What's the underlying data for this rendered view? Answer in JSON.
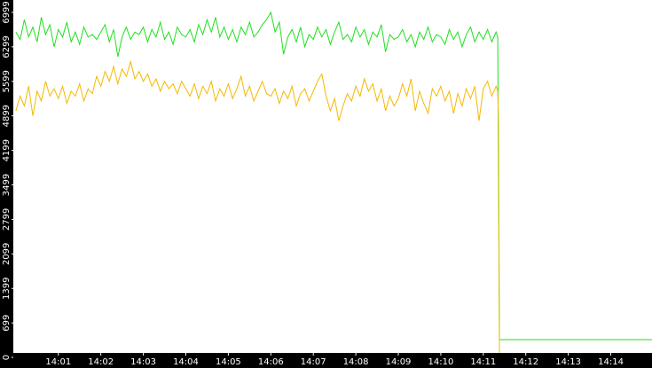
{
  "chart_data": {
    "type": "line",
    "x": [
      0,
      0.1,
      0.2,
      0.3,
      0.4,
      0.5,
      0.6,
      0.7,
      0.8,
      0.9,
      1,
      1.1,
      1.2,
      1.3,
      1.4,
      1.5,
      1.6,
      1.7,
      1.8,
      1.9,
      2,
      2.1,
      2.2,
      2.3,
      2.4,
      2.5,
      2.6,
      2.7,
      2.8,
      2.9,
      3,
      3.1,
      3.2,
      3.3,
      3.4,
      3.5,
      3.6,
      3.7,
      3.8,
      3.9,
      4,
      4.1,
      4.2,
      4.3,
      4.4,
      4.5,
      4.6,
      4.7,
      4.8,
      4.9,
      5,
      5.1,
      5.2,
      5.3,
      5.4,
      5.5,
      5.6,
      5.7,
      5.8,
      5.9,
      6,
      6.1,
      6.2,
      6.3,
      6.4,
      6.5,
      6.6,
      6.7,
      6.8,
      6.9,
      7,
      7.1,
      7.2,
      7.3,
      7.4,
      7.5,
      7.6,
      7.7,
      7.8,
      7.9,
      8,
      8.1,
      8.2,
      8.3,
      8.4,
      8.5,
      8.6,
      8.7,
      8.8,
      8.9,
      9,
      9.1,
      9.2,
      9.3,
      9.4,
      9.5,
      9.6,
      9.7,
      9.8,
      9.9,
      10,
      10.1,
      10.2,
      10.3,
      10.4,
      10.5,
      10.6,
      10.7,
      10.8,
      10.9,
      11,
      11.1,
      11.2,
      11.3,
      11.34,
      11.36,
      11.38,
      14.97
    ],
    "series": [
      {
        "color": "#1ee01e",
        "values": [
          6600,
          6450,
          6850,
          6500,
          6700,
          6400,
          6900,
          6550,
          6750,
          6300,
          6650,
          6500,
          6800,
          6400,
          6600,
          6350,
          6700,
          6500,
          6550,
          6450,
          6600,
          6750,
          6400,
          6650,
          6100,
          6500,
          6700,
          6450,
          6600,
          6550,
          6700,
          6400,
          6650,
          6500,
          6800,
          6450,
          6600,
          6350,
          6700,
          6550,
          6500,
          6650,
          6400,
          6750,
          6550,
          6850,
          6600,
          6900,
          6500,
          6700,
          6450,
          6650,
          6400,
          6700,
          6550,
          6800,
          6500,
          6600,
          6750,
          6850,
          7000,
          6600,
          6800,
          6150,
          6500,
          6650,
          6400,
          6700,
          6300,
          6550,
          6450,
          6700,
          6500,
          6650,
          6350,
          6600,
          6800,
          6450,
          6550,
          6400,
          6700,
          6500,
          6650,
          6350,
          6600,
          6500,
          6750,
          6200,
          6550,
          6450,
          6500,
          6650,
          6400,
          6550,
          6300,
          6600,
          6450,
          6700,
          6400,
          6550,
          6500,
          6350,
          6650,
          6450,
          6600,
          6300,
          6550,
          6700,
          6400,
          6600,
          6450,
          6650,
          6400,
          6600,
          6500,
          3300,
          360,
          360
        ]
      },
      {
        "color": "#f5b800",
        "values": [
          5000,
          5300,
          5100,
          5500,
          4900,
          5400,
          5200,
          5600,
          5300,
          5450,
          5250,
          5500,
          5150,
          5400,
          5300,
          5550,
          5200,
          5450,
          5350,
          5700,
          5500,
          5800,
          5600,
          5900,
          5550,
          5850,
          5700,
          6000,
          5650,
          5800,
          5600,
          5750,
          5500,
          5650,
          5400,
          5600,
          5450,
          5550,
          5350,
          5600,
          5450,
          5300,
          5550,
          5250,
          5500,
          5350,
          5600,
          5200,
          5450,
          5300,
          5550,
          5250,
          5450,
          5700,
          5300,
          5500,
          5200,
          5400,
          5600,
          5350,
          5300,
          5450,
          5150,
          5400,
          5250,
          5500,
          5100,
          5350,
          5450,
          5200,
          5400,
          5600,
          5750,
          5300,
          5000,
          5250,
          4800,
          5100,
          5350,
          5200,
          5500,
          5300,
          5650,
          5400,
          5550,
          5200,
          5450,
          5000,
          5300,
          5100,
          5250,
          5550,
          5300,
          5650,
          5000,
          5400,
          5150,
          4950,
          5450,
          5300,
          5500,
          5200,
          5400,
          4950,
          5350,
          5100,
          5450,
          5250,
          5500,
          4800,
          5450,
          5600,
          5300,
          5500,
          5400,
          4700,
          0,
          0
        ]
      }
    ],
    "xlim": [
      -0.06,
      14.97
    ],
    "xticks": [
      {
        "value": 1,
        "label": "14:01"
      },
      {
        "value": 2,
        "label": "14:02"
      },
      {
        "value": 3,
        "label": "14:03"
      },
      {
        "value": 4,
        "label": "14:04"
      },
      {
        "value": 5,
        "label": "14:05"
      },
      {
        "value": 6,
        "label": "14:06"
      },
      {
        "value": 7,
        "label": "14:07"
      },
      {
        "value": 8,
        "label": "14:08"
      },
      {
        "value": 9,
        "label": "14:09"
      },
      {
        "value": 10,
        "label": "14:10"
      },
      {
        "value": 11,
        "label": "14:11"
      },
      {
        "value": 12,
        "label": "14:12"
      },
      {
        "value": 13,
        "label": "14:13"
      },
      {
        "value": 14,
        "label": "14:14"
      }
    ],
    "ylim": [
      0,
      7250
    ],
    "yticks": [
      0,
      699,
      1399,
      2099,
      2799,
      3499,
      4199,
      4899,
      5599,
      6299,
      6999
    ]
  }
}
